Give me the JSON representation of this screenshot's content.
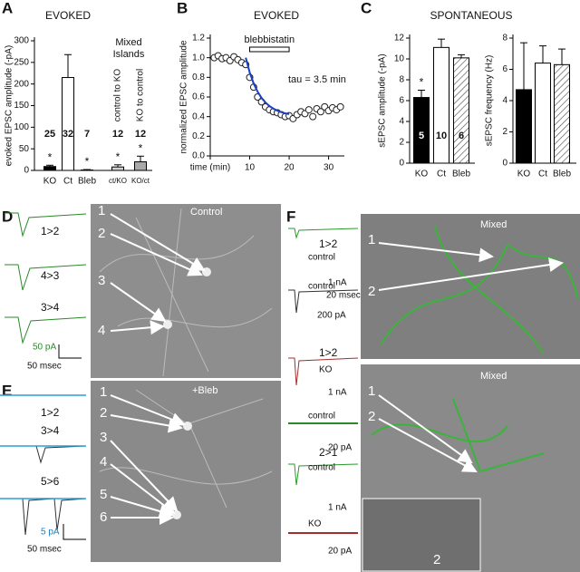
{
  "chart_data": [
    {
      "type": "bar",
      "title": "EVOKED",
      "ylabel": "evoked EPSC amplitude (-pA)",
      "categories": [
        "KO",
        "Ct",
        "Bleb",
        "ct/KO",
        "KO/ct"
      ],
      "values": [
        9,
        215,
        1,
        8,
        20
      ],
      "errors": [
        3,
        53,
        1,
        5,
        13
      ],
      "n": [
        25,
        32,
        7,
        12,
        12
      ],
      "stars": [
        "*",
        null,
        "*",
        "*",
        "*"
      ],
      "colors": [
        "#000000",
        "#ffffff",
        "#ffffff",
        "#d0d0d0",
        "#a8a8a8"
      ],
      "group_label": [
        "Mixed",
        "Islands"
      ],
      "group_sublabels": [
        "control to KO",
        "KO to control"
      ],
      "ylim": [
        0,
        300
      ],
      "yticks": [
        0,
        50,
        100,
        150,
        200,
        250,
        300
      ]
    },
    {
      "type": "line",
      "title": "EVOKED",
      "ylabel": "normalized EPSC amplitude",
      "x": [
        1,
        2,
        3,
        4,
        5,
        6,
        7,
        8,
        9,
        10,
        11,
        12,
        13,
        14,
        15,
        16,
        17,
        18,
        19,
        20,
        21,
        22,
        23,
        24,
        25,
        26,
        27,
        28,
        29,
        30,
        31,
        32,
        33
      ],
      "values": [
        1.0,
        1.02,
        0.99,
        1.0,
        0.97,
        1.01,
        0.98,
        0.95,
        0.93,
        0.8,
        0.7,
        0.6,
        0.55,
        0.5,
        0.47,
        0.45,
        0.44,
        0.42,
        0.4,
        0.41,
        0.38,
        0.42,
        0.45,
        0.43,
        0.47,
        0.4,
        0.48,
        0.45,
        0.5,
        0.46,
        0.49,
        0.47,
        0.5
      ],
      "fit": {
        "x": [
          9,
          10,
          11,
          12,
          13,
          14,
          15,
          16,
          17,
          18,
          19,
          20
        ],
        "values": [
          1.0,
          0.85,
          0.739,
          0.654,
          0.591,
          0.544,
          0.508,
          0.481,
          0.461,
          0.446,
          0.434,
          0.426
        ],
        "color": "#1a3fc4"
      },
      "drug": {
        "label": "blebbistatin",
        "start": 10,
        "end": 20
      },
      "annotation": "tau = 3.5 min",
      "xlim": [
        0,
        34
      ],
      "xticks": [
        {
          "value": 0,
          "label": "time (min)"
        },
        10,
        20,
        30
      ],
      "ylim": [
        0,
        1.2
      ],
      "yticks": [
        {
          "value": 0,
          "label": "0.0"
        },
        {
          "value": 0.2,
          "label": "0.2"
        },
        {
          "value": 0.4,
          "label": "0.4"
        },
        {
          "value": 0.6,
          "label": "0.6"
        },
        {
          "value": 0.8,
          "label": "0.8"
        },
        {
          "value": 1.0,
          "label": "1.0"
        },
        {
          "value": 1.2,
          "label": "1.2"
        }
      ]
    },
    {
      "type": "bar",
      "title": "SPONTANEOUS",
      "ylabel": "sEPSC amplitude (-pA)",
      "categories": [
        "KO",
        "Ct",
        "Bleb"
      ],
      "values": [
        6.3,
        11.1,
        10.1
      ],
      "errors": [
        0.7,
        0.8,
        0.3
      ],
      "n": [
        5,
        10,
        6
      ],
      "stars": [
        "*",
        null,
        null
      ],
      "colors": [
        "#000000",
        "#ffffff",
        "#ffffff"
      ],
      "hatch": [
        false,
        false,
        true
      ],
      "ylim": [
        0,
        12
      ],
      "yticks": [
        0,
        2,
        4,
        6,
        8,
        10,
        12
      ]
    },
    {
      "type": "bar",
      "ylabel": "sEPSC frequency (Hz)",
      "categories": [
        "KO",
        "Ct",
        "Bleb"
      ],
      "values": [
        4.7,
        6.4,
        6.3
      ],
      "errors": [
        3.0,
        1.1,
        1.0
      ],
      "colors": [
        "#000000",
        "#ffffff",
        "#ffffff"
      ],
      "hatch": [
        false,
        false,
        true
      ],
      "ylim": [
        0,
        8
      ],
      "yticks": [
        0,
        2,
        4,
        6,
        8
      ]
    }
  ],
  "panels": {
    "A": "A",
    "B": "B",
    "C": "C",
    "D": "D",
    "E": "E",
    "F": "F",
    "d": {
      "image_title": "Control",
      "traces": [
        "1>2",
        "4>3",
        "3>4"
      ],
      "scale": [
        "50 pA",
        "50 msec"
      ],
      "numbers": [
        "1",
        "2",
        "3",
        "4"
      ]
    },
    "e": {
      "image_title": "+Bleb",
      "traces": [
        "1>2",
        "3>4",
        "5>6"
      ],
      "scale": [
        "5 pA",
        "50 msec"
      ],
      "numbers": [
        "1",
        "2",
        "3",
        "4",
        "5",
        "6"
      ]
    },
    "f": {
      "image_titles": [
        "Mixed",
        "Mixed"
      ],
      "pairs": [
        "1>2",
        "1>2",
        "2>1"
      ],
      "conditions": [
        "control",
        "control",
        "KO",
        "control",
        "control",
        "KO"
      ],
      "scales": [
        "1 nA",
        "20 msec",
        "200 pA",
        "1 nA",
        "20 pA",
        "1 nA",
        "20 pA"
      ],
      "numbers": [
        "1",
        "2",
        "1",
        "2",
        "2"
      ]
    }
  }
}
